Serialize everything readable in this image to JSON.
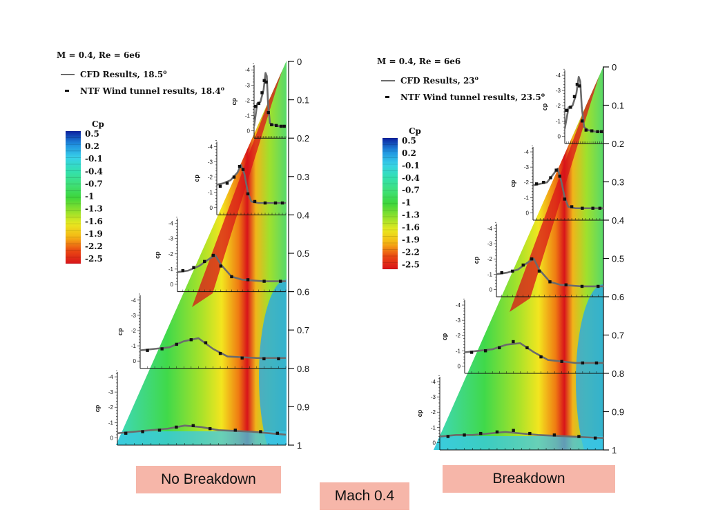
{
  "palette": {
    "stops": [
      "#0b1f9e",
      "#1f8fe0",
      "#38d1e8",
      "#33e0b0",
      "#3fe07a",
      "#3ed63c",
      "#8fe02c",
      "#e8e820",
      "#f5b515",
      "#ea4a12",
      "#d8141a"
    ],
    "caption_bg": "#f6b6a9",
    "cfd_line": "#6b6b6b",
    "ntf_marker": "#111111"
  },
  "captions": {
    "left": "No Breakdown",
    "right": "Breakdown",
    "center": "Mach 0.4"
  },
  "chart_data": [
    {
      "type": "line",
      "title": "M = 0.4, Re = 6e6",
      "legend": [
        {
          "name": "CFD Results, 18.5",
          "sup": "o",
          "style": "line"
        },
        {
          "name": "NTF Wind tunnel results, 18.4",
          "sup": "o",
          "style": "marker"
        }
      ],
      "colorbar": {
        "title": "Cp",
        "ticks": [
          "0.5",
          "0.2",
          "-0.1",
          "-0.4",
          "-0.7",
          "-1",
          "-1.3",
          "-1.6",
          "-1.9",
          "-2.2",
          "-2.5"
        ]
      },
      "yaxis": {
        "label": "",
        "range": [
          0,
          1
        ],
        "ticks": [
          "0",
          "0.1",
          "0.2",
          "0.3",
          "0.4",
          "0.5",
          "0.6",
          "0.7",
          "0.8",
          "0.9",
          "1"
        ]
      },
      "cp_axis": {
        "label": "cp",
        "ticks": [
          "-4",
          "-3",
          "-2",
          "-1",
          "0"
        ]
      },
      "stations": [
        {
          "eta": 0.2,
          "series": [
            {
              "name": "CFD Results, 18.5",
              "x": [
                0,
                0.1,
                0.2,
                0.3,
                0.36,
                0.4,
                0.44,
                0.5,
                0.6,
                0.8,
                1
              ],
              "cp": [
                -0.3,
                -1.8,
                -1.9,
                -2.7,
                -3.8,
                -3.6,
                -1.8,
                -0.5,
                -0.4,
                -0.3,
                -0.3
              ]
            },
            {
              "name": "NTF Wind tunnel results, 18.4",
              "x": [
                0.05,
                0.15,
                0.25,
                0.32,
                0.38,
                0.45,
                0.55,
                0.7,
                0.85,
                0.95
              ],
              "cp": [
                -1.6,
                -1.8,
                -2.5,
                -3.3,
                -3.2,
                -1.2,
                -0.4,
                -0.35,
                -0.3,
                -0.3
              ]
            }
          ]
        },
        {
          "eta": 0.4,
          "series": [
            {
              "name": "CFD Results, 18.5",
              "x": [
                0,
                0.1,
                0.2,
                0.3,
                0.35,
                0.4,
                0.45,
                0.5,
                0.6,
                0.8,
                1
              ],
              "cp": [
                -1.5,
                -1.6,
                -1.8,
                -2.3,
                -2.8,
                -2.2,
                -1.0,
                -0.4,
                -0.3,
                -0.3,
                -0.3
              ]
            },
            {
              "name": "NTF Wind tunnel results, 18.4",
              "x": [
                0.05,
                0.15,
                0.25,
                0.33,
                0.38,
                0.45,
                0.55,
                0.7,
                0.85,
                0.95
              ],
              "cp": [
                -1.4,
                -1.6,
                -2.0,
                -2.7,
                -2.5,
                -0.9,
                -0.4,
                -0.3,
                -0.3,
                -0.3
              ]
            }
          ]
        },
        {
          "eta": 0.6,
          "series": [
            {
              "name": "CFD Results, 18.5",
              "x": [
                0,
                0.1,
                0.2,
                0.3,
                0.35,
                0.4,
                0.5,
                0.6,
                0.8,
                1
              ],
              "cp": [
                -0.8,
                -0.9,
                -1.2,
                -1.7,
                -1.9,
                -1.3,
                -0.5,
                -0.3,
                -0.2,
                -0.2
              ]
            },
            {
              "name": "NTF Wind tunnel results, 18.4",
              "x": [
                0.05,
                0.15,
                0.25,
                0.33,
                0.4,
                0.5,
                0.65,
                0.8,
                0.95
              ],
              "cp": [
                -0.9,
                -1.1,
                -1.5,
                -1.9,
                -1.2,
                -0.5,
                -0.3,
                -0.2,
                -0.2
              ]
            }
          ]
        },
        {
          "eta": 0.8,
          "series": [
            {
              "name": "CFD Results, 18.5",
              "x": [
                0,
                0.1,
                0.2,
                0.3,
                0.4,
                0.5,
                0.6,
                0.8,
                1
              ],
              "cp": [
                -0.7,
                -0.8,
                -0.9,
                -1.3,
                -1.5,
                -0.8,
                -0.3,
                -0.2,
                -0.2
              ]
            },
            {
              "name": "NTF Wind tunnel results, 18.4",
              "x": [
                0.05,
                0.15,
                0.25,
                0.35,
                0.45,
                0.55,
                0.7,
                0.85,
                0.95
              ],
              "cp": [
                -0.7,
                -0.8,
                -1.1,
                -1.4,
                -1.2,
                -0.5,
                -0.2,
                -0.15,
                -0.15
              ]
            }
          ]
        },
        {
          "eta": 1.0,
          "series": [
            {
              "name": "CFD Results, 18.5",
              "x": [
                0,
                0.1,
                0.2,
                0.3,
                0.4,
                0.5,
                0.6,
                0.8,
                1
              ],
              "cp": [
                -0.3,
                -0.4,
                -0.5,
                -0.6,
                -0.8,
                -0.7,
                -0.5,
                -0.4,
                -0.2
              ]
            },
            {
              "name": "NTF Wind tunnel results, 18.4",
              "x": [
                0.05,
                0.15,
                0.25,
                0.35,
                0.45,
                0.55,
                0.7,
                0.85,
                0.95
              ],
              "cp": [
                -0.3,
                -0.4,
                -0.5,
                -0.7,
                -0.8,
                -0.6,
                -0.5,
                -0.4,
                -0.3
              ]
            }
          ]
        }
      ]
    },
    {
      "type": "line",
      "title": "M = 0.4, Re = 6e6",
      "legend": [
        {
          "name": "CFD Results, 23",
          "sup": "o",
          "style": "line"
        },
        {
          "name": "NTF Wind tunnel results, 23.5",
          "sup": "o",
          "style": "marker"
        }
      ],
      "colorbar": {
        "title": "Cp",
        "ticks": [
          "0.5",
          "0.2",
          "-0.1",
          "-0.4",
          "-0.7",
          "-1",
          "-1.3",
          "-1.6",
          "-1.9",
          "-2.2",
          "-2.5"
        ]
      },
      "yaxis": {
        "label": "",
        "range": [
          0,
          1
        ],
        "ticks": [
          "0",
          "0.1",
          "0.2",
          "0.3",
          "0.4",
          "0.5",
          "0.6",
          "0.7",
          "0.8",
          "0.9",
          "1"
        ]
      },
      "cp_axis": {
        "label": "cp",
        "ticks": [
          "-4",
          "-3",
          "-2",
          "-1",
          "0"
        ]
      },
      "stations": [
        {
          "eta": 0.2,
          "series": [
            {
              "name": "CFD Results, 23",
              "x": [
                0,
                0.1,
                0.2,
                0.3,
                0.36,
                0.4,
                0.44,
                0.5,
                0.6,
                0.8,
                1
              ],
              "cp": [
                -0.5,
                -1.9,
                -2.0,
                -2.8,
                -3.9,
                -3.6,
                -1.9,
                -0.6,
                -0.4,
                -0.3,
                -0.3
              ]
            },
            {
              "name": "NTF Wind tunnel results, 23.5",
              "x": [
                0.05,
                0.15,
                0.25,
                0.32,
                0.38,
                0.45,
                0.55,
                0.7,
                0.85,
                0.95
              ],
              "cp": [
                -1.7,
                -1.9,
                -2.6,
                -3.4,
                -3.3,
                -1.0,
                -0.4,
                -0.35,
                -0.3,
                -0.3
              ]
            }
          ]
        },
        {
          "eta": 0.4,
          "series": [
            {
              "name": "CFD Results, 23",
              "x": [
                0,
                0.1,
                0.2,
                0.3,
                0.35,
                0.4,
                0.45,
                0.5,
                0.6,
                0.8,
                1
              ],
              "cp": [
                -1.8,
                -1.9,
                -2.0,
                -2.6,
                -2.9,
                -2.1,
                -1.0,
                -0.4,
                -0.3,
                -0.3,
                -0.3
              ]
            },
            {
              "name": "NTF Wind tunnel results, 23.5",
              "x": [
                0.05,
                0.15,
                0.25,
                0.33,
                0.38,
                0.45,
                0.55,
                0.7,
                0.85,
                0.95
              ],
              "cp": [
                -1.9,
                -2.0,
                -2.3,
                -2.8,
                -2.4,
                -0.9,
                -0.4,
                -0.3,
                -0.3,
                -0.3
              ]
            }
          ]
        },
        {
          "eta": 0.6,
          "series": [
            {
              "name": "CFD Results, 23",
              "x": [
                0,
                0.1,
                0.2,
                0.3,
                0.35,
                0.4,
                0.5,
                0.6,
                0.8,
                1
              ],
              "cp": [
                -1.0,
                -1.1,
                -1.3,
                -1.8,
                -2.0,
                -1.3,
                -0.5,
                -0.3,
                -0.2,
                -0.2
              ]
            },
            {
              "name": "NTF Wind tunnel results, 23.5",
              "x": [
                0.05,
                0.15,
                0.25,
                0.33,
                0.4,
                0.5,
                0.65,
                0.8,
                0.95
              ],
              "cp": [
                -1.1,
                -1.2,
                -1.6,
                -2.0,
                -1.2,
                -0.5,
                -0.3,
                -0.2,
                -0.2
              ]
            }
          ]
        },
        {
          "eta": 0.8,
          "series": [
            {
              "name": "CFD Results, 23",
              "x": [
                0,
                0.1,
                0.2,
                0.3,
                0.4,
                0.5,
                0.6,
                0.8,
                1
              ],
              "cp": [
                -0.9,
                -1.0,
                -1.1,
                -1.4,
                -1.5,
                -0.9,
                -0.4,
                -0.2,
                -0.2
              ]
            },
            {
              "name": "NTF Wind tunnel results, 23.5",
              "x": [
                0.05,
                0.15,
                0.25,
                0.35,
                0.45,
                0.55,
                0.7,
                0.85,
                0.95
              ],
              "cp": [
                -0.9,
                -1.0,
                -1.2,
                -1.6,
                -1.2,
                -0.6,
                -0.3,
                -0.2,
                -0.2
              ]
            }
          ]
        },
        {
          "eta": 1.0,
          "series": [
            {
              "name": "CFD Results, 23",
              "x": [
                0,
                0.1,
                0.2,
                0.3,
                0.4,
                0.5,
                0.6,
                0.8,
                1
              ],
              "cp": [
                -0.4,
                -0.5,
                -0.5,
                -0.6,
                -0.7,
                -0.6,
                -0.5,
                -0.4,
                -0.3
              ]
            },
            {
              "name": "NTF Wind tunnel results, 23.5",
              "x": [
                0.05,
                0.15,
                0.25,
                0.35,
                0.45,
                0.55,
                0.7,
                0.85,
                0.95
              ],
              "cp": [
                -0.4,
                -0.5,
                -0.6,
                -0.7,
                -0.8,
                -0.6,
                -0.5,
                -0.4,
                -0.3
              ]
            }
          ]
        }
      ]
    }
  ]
}
